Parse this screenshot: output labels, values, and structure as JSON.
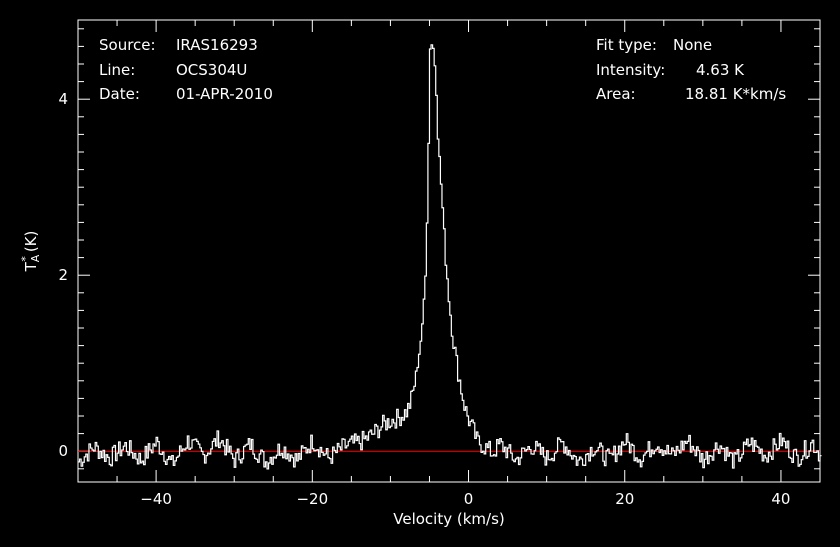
{
  "header_left": {
    "source_label": "Source:",
    "source_value": "IRAS16293",
    "line_label": "Line:",
    "line_value": "OCS304U",
    "date_label": "Date:",
    "date_value": "01-APR-2010"
  },
  "header_right": {
    "fit_label": "Fit type:",
    "fit_value": "None",
    "intensity_label": "Intensity:",
    "intensity_value": "4.63 K",
    "area_label": "Area:",
    "area_value": "18.81 K*km/s"
  },
  "colors": {
    "background": "#000000",
    "axes": "#ffffff",
    "spectrum": "#ffffff",
    "baseline": "#ff0000"
  },
  "chart_data": {
    "type": "line",
    "title": "",
    "xlabel": "Velocity (km/s)",
    "ylabel": "T_A^* (K)",
    "xlim": [
      -50,
      45
    ],
    "ylim": [
      -0.35,
      4.9
    ],
    "x_ticks": [
      -40,
      -20,
      0,
      20,
      40
    ],
    "x_tick_labels": [
      "−40",
      "−20",
      "0",
      "20",
      "40"
    ],
    "y_ticks": [
      0,
      2,
      4
    ],
    "y_tick_labels": [
      "0",
      "2",
      "4"
    ],
    "grid": false,
    "baseline_y": 0,
    "series": [
      {
        "x": [
          -50,
          -48,
          -46,
          -44,
          -42,
          -40,
          -38,
          -36,
          -34,
          -32,
          -30,
          -28,
          -26,
          -24,
          -22,
          -20,
          -18,
          -16,
          -15,
          -14,
          -13,
          -12,
          -11,
          -10,
          -9,
          -8,
          -7.5,
          -7,
          -6.5,
          -6,
          -5.5,
          -5.2,
          -5,
          -4.8,
          -4.5,
          -4.2,
          -4,
          -3.5,
          -3,
          -2.5,
          -2,
          -1.5,
          -1,
          -0.5,
          0,
          0.5,
          1,
          2,
          3,
          4,
          6,
          8,
          10,
          12,
          14,
          16,
          18,
          20,
          22,
          24,
          26,
          28,
          30,
          32,
          34,
          36,
          38,
          40,
          42,
          44,
          45
        ],
        "y": [
          -0.12,
          0.05,
          -0.08,
          0.06,
          -0.1,
          0.1,
          -0.15,
          0.12,
          -0.05,
          0.15,
          -0.1,
          0.08,
          -0.12,
          0.05,
          -0.1,
          0.12,
          -0.08,
          0.05,
          0.08,
          0.1,
          0.15,
          0.22,
          0.3,
          0.35,
          0.38,
          0.45,
          0.55,
          0.75,
          1.05,
          1.4,
          2.2,
          3.5,
          4.6,
          4.63,
          4.55,
          4.1,
          3.6,
          2.9,
          2.2,
          1.65,
          1.25,
          0.95,
          0.7,
          0.48,
          0.35,
          0.25,
          0.12,
          0.05,
          -0.02,
          0.08,
          -0.1,
          0.06,
          -0.08,
          0.1,
          -0.12,
          0.05,
          -0.1,
          0.12,
          -0.08,
          0.1,
          -0.05,
          0.12,
          -0.1,
          0.08,
          -0.12,
          0.1,
          -0.05,
          0.12,
          -0.08,
          0.1,
          -0.05
        ]
      }
    ]
  }
}
